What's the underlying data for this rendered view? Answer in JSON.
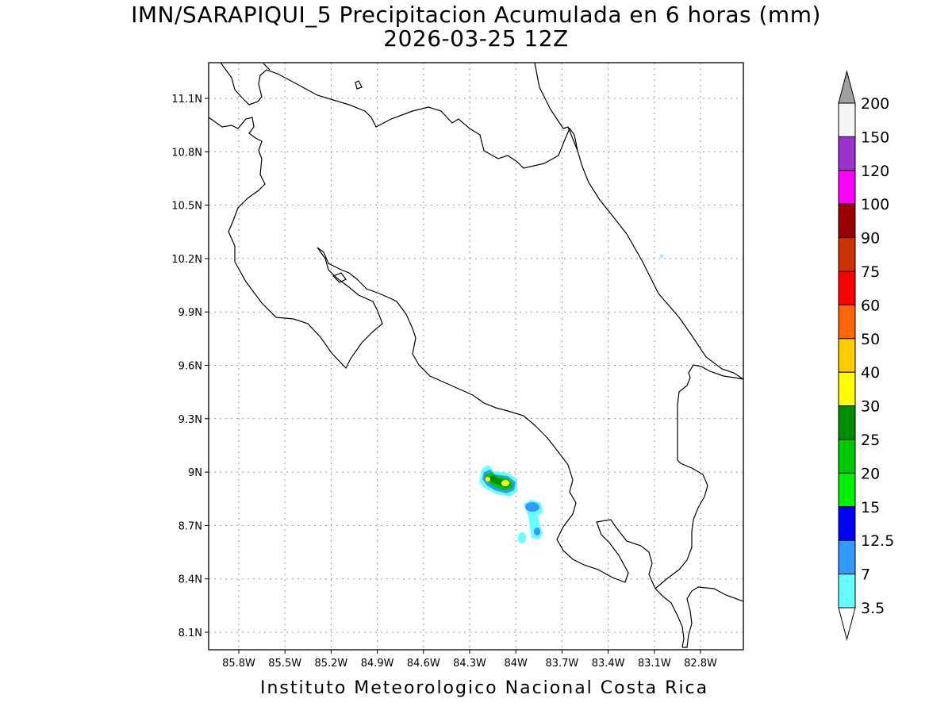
{
  "map": {
    "title_line1": "IMN/SARAPIQUI_5 Precipitacion Acumulada en 6 horas (mm)",
    "title_line2": "2026-03-25 12Z",
    "footer": "Instituto Meteorologico Nacional Costa Rica",
    "lat_labels": [
      "11.1N",
      "10.8N",
      "10.5N",
      "10.2N",
      "9.9N",
      "9.6N",
      "9.3N",
      "9N",
      "8.7N",
      "8.4N",
      "8.1N"
    ],
    "lon_labels": [
      "85.8W",
      "85.5W",
      "85.2W",
      "84.9W",
      "84.6W",
      "84.3W",
      "84W",
      "83.7W",
      "83.4W",
      "83.1W",
      "82.8W"
    ]
  },
  "legend": {
    "labels": [
      "200",
      "150",
      "120",
      "100",
      "90",
      "75",
      "60",
      "50",
      "40",
      "30",
      "25",
      "20",
      "15",
      "12.5",
      "7",
      "3.5"
    ],
    "colors": [
      "#a0a0a0",
      "#f5f5f5",
      "#9a32cd",
      "#ff00ff",
      "#990000",
      "#cc3300",
      "#ff0000",
      "#ff6600",
      "#ffcc00",
      "#ffff00",
      "#008c00",
      "#00c800",
      "#00f000",
      "#0000ff",
      "#3399ff",
      "#66ffff",
      "#ffffff"
    ]
  }
}
